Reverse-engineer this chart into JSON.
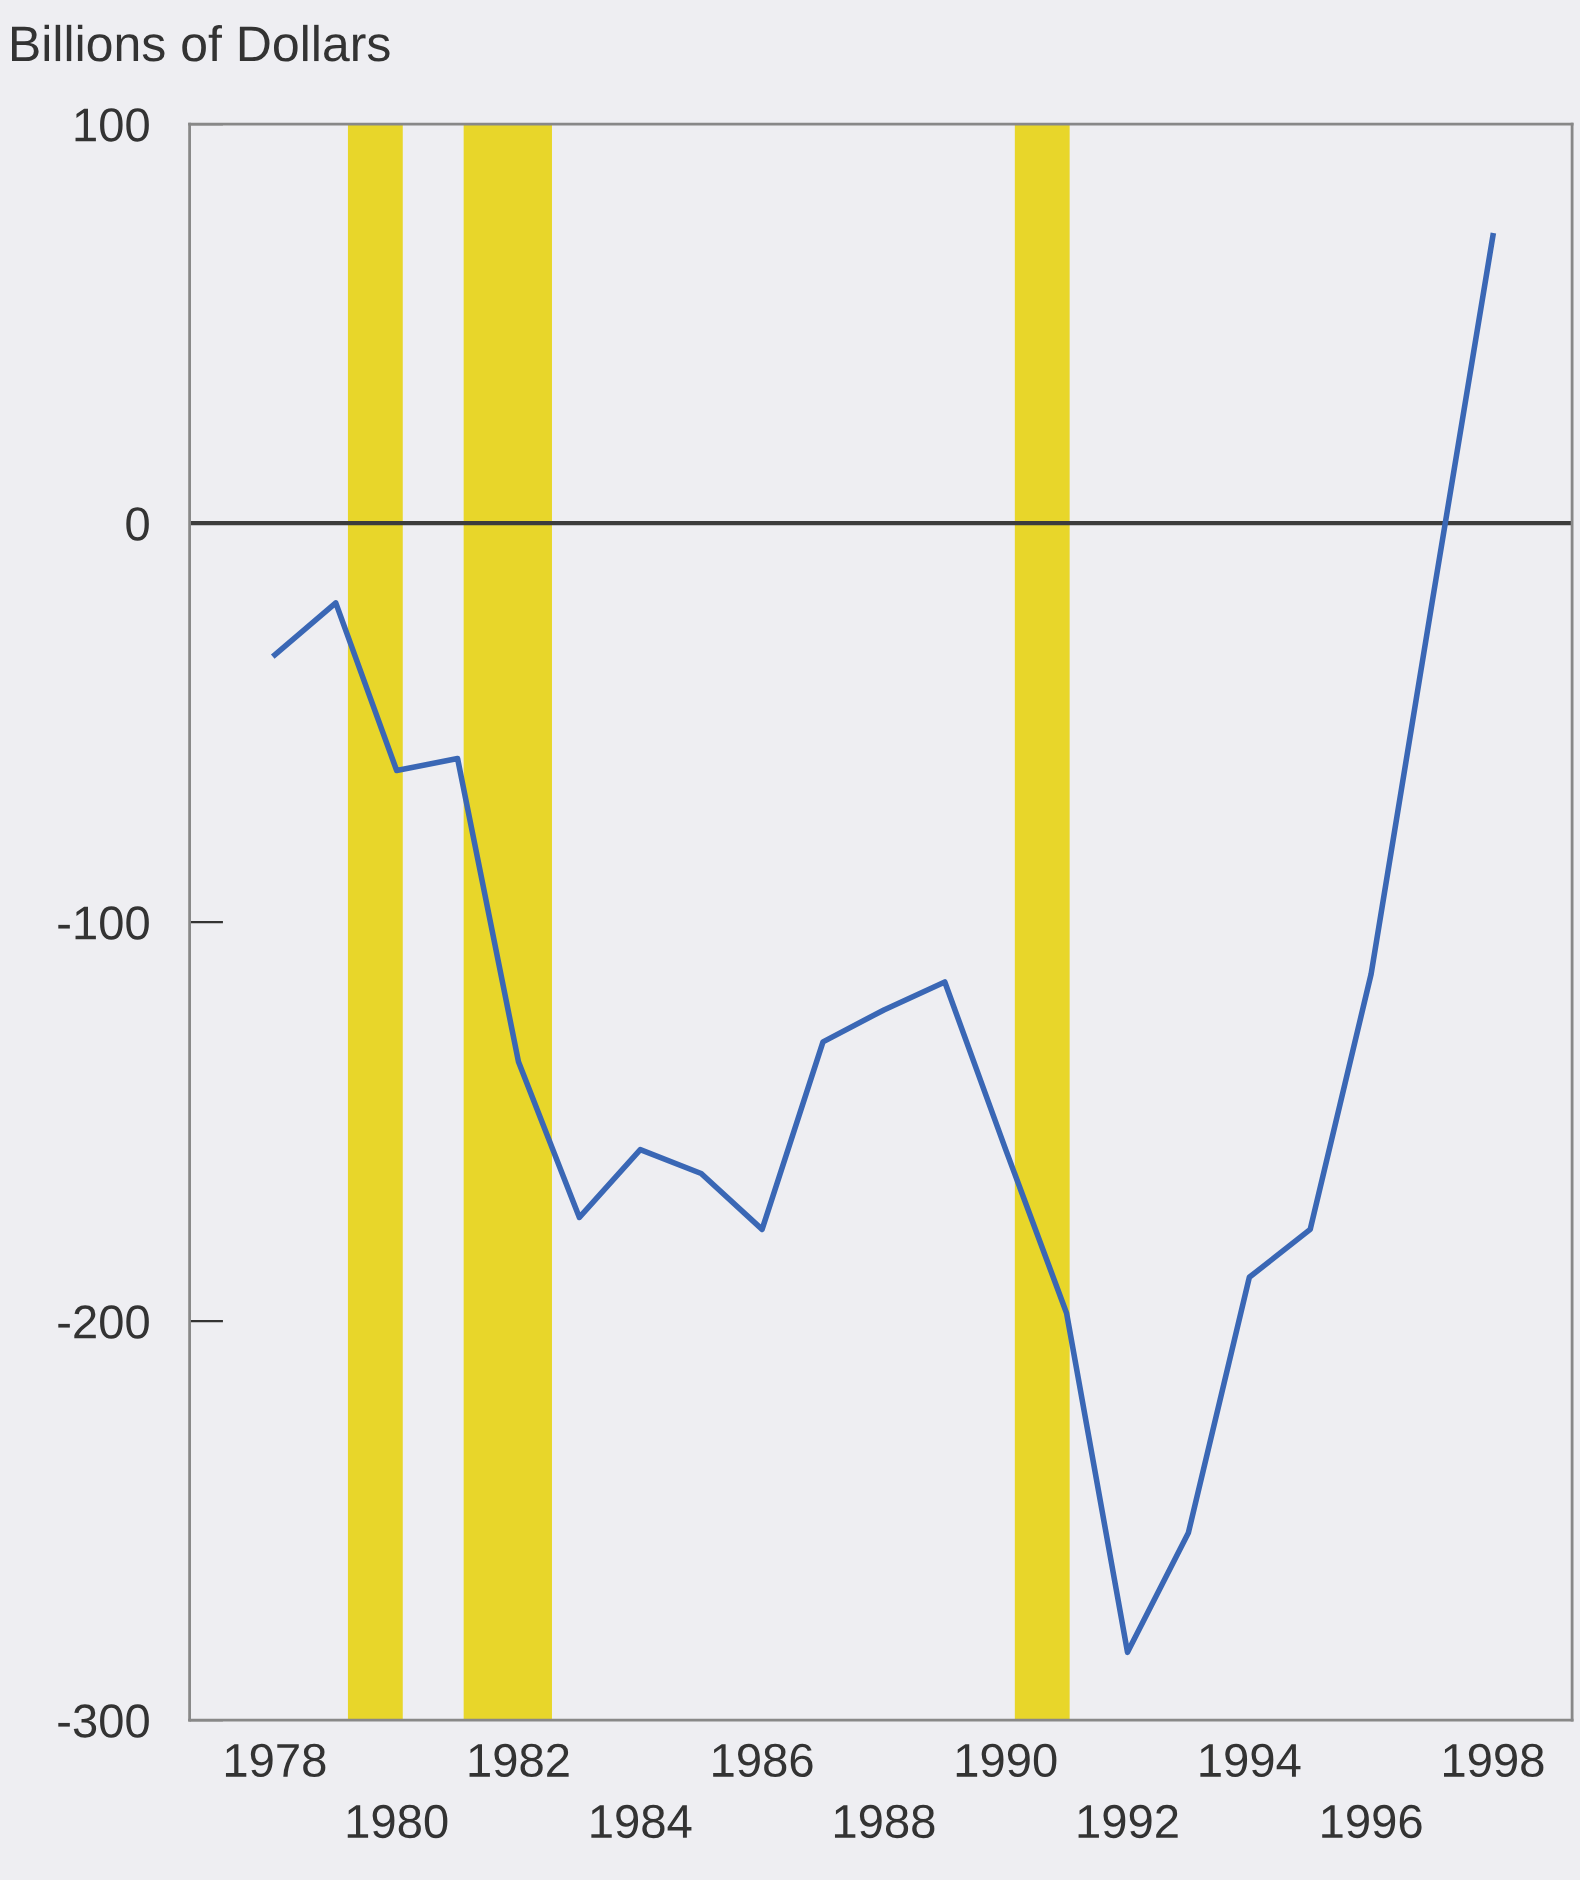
{
  "chart_data": {
    "type": "line",
    "ylabel": "Billions of Dollars",
    "x": [
      1978,
      1979,
      1980,
      1981,
      1982,
      1983,
      1984,
      1985,
      1986,
      1987,
      1988,
      1989,
      1990,
      1991,
      1992,
      1993,
      1994,
      1995,
      1996,
      1997,
      1998
    ],
    "series": [
      {
        "color": "#3a67b5",
        "values": [
          -33,
          -20,
          -62,
          -59,
          -135,
          -174,
          -157,
          -163,
          -177,
          -130,
          -122,
          -115,
          -157,
          -198,
          -283,
          -253,
          -189,
          -177,
          -113,
          -20,
          72
        ]
      }
    ],
    "xlim": [
      1976.6,
      1999.3
    ],
    "ylim": [
      -300,
      100
    ],
    "xticks": [
      1978,
      1982,
      1986,
      1990,
      1994,
      1998
    ],
    "x2ticks": [
      1980,
      1984,
      1988,
      1992,
      1996
    ],
    "x2lim": [
      1976.6,
      1999.3
    ],
    "yticks": [
      -300,
      -200,
      -100,
      0,
      100
    ],
    "ref_lines": [
      {
        "axis": "y",
        "value": 0,
        "color": "#3c3c3c"
      }
    ],
    "bands": [
      {
        "axis": "x",
        "from": 1979.2,
        "to": 1980.1,
        "color": "#e8d62a"
      },
      {
        "axis": "x",
        "from": 1981.1,
        "to": 1982.55,
        "color": "#e8d62a"
      },
      {
        "axis": "x",
        "from": 1990.15,
        "to": 1991.05,
        "color": "#e8d62a"
      }
    ],
    "grid": false,
    "legend": false,
    "marker": "none",
    "line_style": "solid"
  }
}
